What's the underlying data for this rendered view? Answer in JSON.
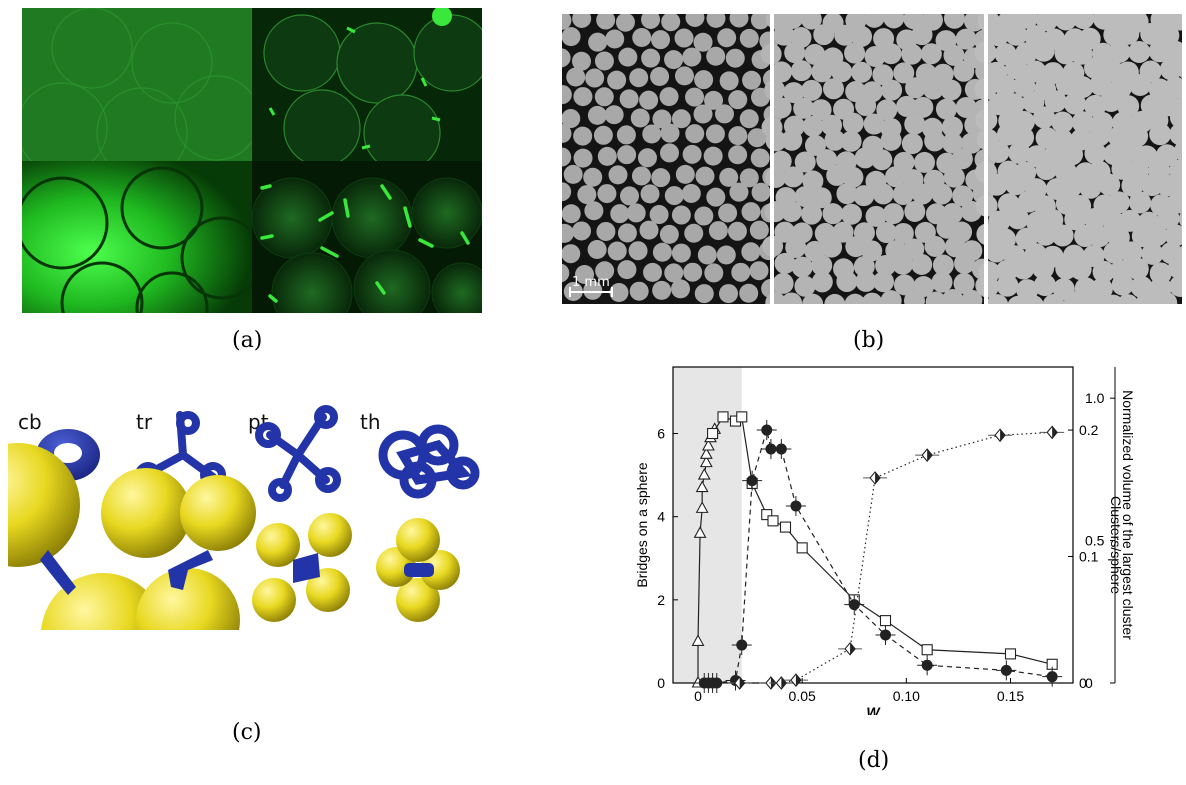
{
  "captions": {
    "a": "(a)",
    "b": "(b)",
    "c": "(c)",
    "d": "(d)"
  },
  "panel_b": {
    "scale_bar_label": "1 mm"
  },
  "panel_c": {
    "labels": [
      "cb",
      "tr",
      "pt",
      "th"
    ]
  },
  "colors": {
    "fluorescent_green": "#39e83a",
    "bridge_blue": "#2234a8",
    "sphere_yellow": "#e8d820",
    "shaded_region": "#e6e6e6"
  },
  "chart_data": {
    "type": "line",
    "xlabel": "W",
    "ylabel_left": "Bridges on a sphere",
    "ylabel_right_inner": "Clusters/sphere",
    "ylabel_right_outer": "Normalized volume of the largest cluster",
    "x_ticks": [
      "0",
      "0.05",
      "0.10",
      "0.15"
    ],
    "x_tick_values": [
      0,
      0.05,
      0.1,
      0.15
    ],
    "y_left_ticks": [
      "0",
      "2",
      "4",
      "6"
    ],
    "y_left_tick_values": [
      0,
      2,
      4,
      6
    ],
    "y_right_inner_ticks": [
      "0",
      "0.1",
      "0.2"
    ],
    "y_right_inner_tick_values": [
      0,
      0.1,
      0.2
    ],
    "y_right_outer_ticks": [
      "0",
      "0.5",
      "1.0"
    ],
    "y_right_outer_tick_values": [
      0,
      0.5,
      1.0
    ],
    "xlim": [
      -0.012,
      0.18
    ],
    "ylim_left": [
      0,
      7.6
    ],
    "shaded_x_range": [
      -0.012,
      0.021
    ],
    "series": [
      {
        "marker": "open-triangle",
        "line": "solid",
        "axis": "left",
        "x": [
          0,
          0,
          0.001,
          0.002,
          0.002,
          0.003,
          0.004,
          0.004,
          0.005,
          0.006,
          0.008
        ],
        "y": [
          0,
          1.0,
          3.6,
          4.2,
          4.7,
          5.0,
          5.3,
          5.5,
          5.7,
          5.9,
          6.1
        ]
      },
      {
        "marker": "open-square",
        "line": "solid",
        "axis": "left",
        "x": [
          0.007,
          0.012,
          0.018,
          0.021,
          0.026,
          0.033,
          0.036,
          0.042,
          0.05,
          0.075,
          0.09,
          0.11,
          0.15,
          0.17
        ],
        "y": [
          6.0,
          6.4,
          6.3,
          6.4,
          4.8,
          4.05,
          3.9,
          3.75,
          3.25,
          2.0,
          1.5,
          0.8,
          0.7,
          0.45
        ]
      },
      {
        "marker": "filled-circle",
        "line": "dashed",
        "axis": "right_inner",
        "x": [
          0.003,
          0.005,
          0.007,
          0.009,
          0.018,
          0.021,
          0.026,
          0.033,
          0.035,
          0.04,
          0.047,
          0.075,
          0.09,
          0.11,
          0.148,
          0.17
        ],
        "y": [
          0,
          0,
          0,
          0,
          0.002,
          0.03,
          0.16,
          0.2,
          0.185,
          0.185,
          0.14,
          0.062,
          0.038,
          0.014,
          0.01,
          0.005
        ]
      },
      {
        "marker": "half-filled-diamond",
        "line": "dotted",
        "axis": "right_outer",
        "x": [
          0.02,
          0.035,
          0.04,
          0.047,
          0.073,
          0.085,
          0.11,
          0.145,
          0.17
        ],
        "y": [
          0,
          0,
          0,
          0.01,
          0.12,
          0.72,
          0.8,
          0.87,
          0.88
        ]
      }
    ]
  }
}
